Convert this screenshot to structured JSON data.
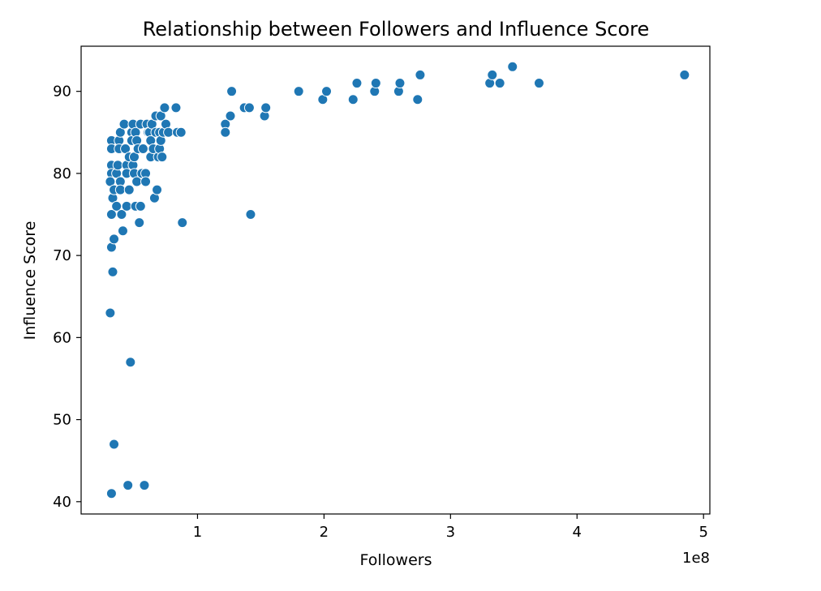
{
  "chart_data": {
    "type": "scatter",
    "title": "Relationship between Followers and Influence Score",
    "xlabel": "Followers",
    "ylabel": "Influence Score",
    "x_offset_label": "1e8",
    "xlim": [
      0.08,
      5.05
    ],
    "ylim": [
      38.5,
      95.5
    ],
    "xticks": [
      1,
      2,
      3,
      4,
      5
    ],
    "xtick_labels": [
      "1",
      "2",
      "3",
      "4",
      "5"
    ],
    "yticks": [
      40,
      50,
      60,
      70,
      80,
      90
    ],
    "ytick_labels": [
      "40",
      "50",
      "60",
      "70",
      "80",
      "90"
    ],
    "grid": false,
    "marker_color": "#1f77b4",
    "points": [
      {
        "x": 0.32,
        "y": 84
      },
      {
        "x": 0.32,
        "y": 83
      },
      {
        "x": 0.32,
        "y": 81
      },
      {
        "x": 0.32,
        "y": 80
      },
      {
        "x": 0.31,
        "y": 79
      },
      {
        "x": 0.32,
        "y": 75
      },
      {
        "x": 0.32,
        "y": 71
      },
      {
        "x": 0.33,
        "y": 68
      },
      {
        "x": 0.31,
        "y": 63
      },
      {
        "x": 0.32,
        "y": 41
      },
      {
        "x": 0.34,
        "y": 47
      },
      {
        "x": 0.34,
        "y": 72
      },
      {
        "x": 0.33,
        "y": 77
      },
      {
        "x": 0.34,
        "y": 78
      },
      {
        "x": 0.36,
        "y": 76
      },
      {
        "x": 0.36,
        "y": 80
      },
      {
        "x": 0.37,
        "y": 81
      },
      {
        "x": 0.38,
        "y": 84
      },
      {
        "x": 0.38,
        "y": 83
      },
      {
        "x": 0.39,
        "y": 85
      },
      {
        "x": 0.39,
        "y": 79
      },
      {
        "x": 0.39,
        "y": 78
      },
      {
        "x": 0.4,
        "y": 75
      },
      {
        "x": 0.41,
        "y": 73
      },
      {
        "x": 0.42,
        "y": 86
      },
      {
        "x": 0.43,
        "y": 83
      },
      {
        "x": 0.44,
        "y": 81
      },
      {
        "x": 0.44,
        "y": 80
      },
      {
        "x": 0.44,
        "y": 76
      },
      {
        "x": 0.45,
        "y": 42
      },
      {
        "x": 0.46,
        "y": 82
      },
      {
        "x": 0.46,
        "y": 78
      },
      {
        "x": 0.47,
        "y": 57
      },
      {
        "x": 0.48,
        "y": 85
      },
      {
        "x": 0.48,
        "y": 84
      },
      {
        "x": 0.49,
        "y": 86
      },
      {
        "x": 0.49,
        "y": 81
      },
      {
        "x": 0.5,
        "y": 80
      },
      {
        "x": 0.5,
        "y": 82
      },
      {
        "x": 0.51,
        "y": 85
      },
      {
        "x": 0.51,
        "y": 76
      },
      {
        "x": 0.52,
        "y": 84
      },
      {
        "x": 0.52,
        "y": 79
      },
      {
        "x": 0.53,
        "y": 83
      },
      {
        "x": 0.54,
        "y": 74
      },
      {
        "x": 0.55,
        "y": 76
      },
      {
        "x": 0.55,
        "y": 86
      },
      {
        "x": 0.56,
        "y": 80
      },
      {
        "x": 0.57,
        "y": 83
      },
      {
        "x": 0.58,
        "y": 42
      },
      {
        "x": 0.59,
        "y": 80
      },
      {
        "x": 0.59,
        "y": 79
      },
      {
        "x": 0.6,
        "y": 86
      },
      {
        "x": 0.61,
        "y": 85
      },
      {
        "x": 0.62,
        "y": 85
      },
      {
        "x": 0.63,
        "y": 84
      },
      {
        "x": 0.63,
        "y": 82
      },
      {
        "x": 0.64,
        "y": 86
      },
      {
        "x": 0.65,
        "y": 83
      },
      {
        "x": 0.66,
        "y": 77
      },
      {
        "x": 0.67,
        "y": 87
      },
      {
        "x": 0.67,
        "y": 85
      },
      {
        "x": 0.68,
        "y": 78
      },
      {
        "x": 0.69,
        "y": 82
      },
      {
        "x": 0.7,
        "y": 85
      },
      {
        "x": 0.7,
        "y": 83
      },
      {
        "x": 0.71,
        "y": 84
      },
      {
        "x": 0.71,
        "y": 87
      },
      {
        "x": 0.72,
        "y": 82
      },
      {
        "x": 0.73,
        "y": 85
      },
      {
        "x": 0.74,
        "y": 88
      },
      {
        "x": 0.75,
        "y": 86
      },
      {
        "x": 0.77,
        "y": 85
      },
      {
        "x": 0.83,
        "y": 88
      },
      {
        "x": 0.84,
        "y": 85
      },
      {
        "x": 0.87,
        "y": 85
      },
      {
        "x": 0.88,
        "y": 74
      },
      {
        "x": 1.22,
        "y": 86
      },
      {
        "x": 1.22,
        "y": 85
      },
      {
        "x": 1.26,
        "y": 87
      },
      {
        "x": 1.27,
        "y": 90
      },
      {
        "x": 1.37,
        "y": 88
      },
      {
        "x": 1.41,
        "y": 88
      },
      {
        "x": 1.42,
        "y": 75
      },
      {
        "x": 1.53,
        "y": 87
      },
      {
        "x": 1.54,
        "y": 88
      },
      {
        "x": 1.8,
        "y": 90
      },
      {
        "x": 1.99,
        "y": 89
      },
      {
        "x": 2.02,
        "y": 90
      },
      {
        "x": 2.23,
        "y": 89
      },
      {
        "x": 2.26,
        "y": 91
      },
      {
        "x": 2.4,
        "y": 90
      },
      {
        "x": 2.41,
        "y": 91
      },
      {
        "x": 2.59,
        "y": 90
      },
      {
        "x": 2.6,
        "y": 91
      },
      {
        "x": 2.74,
        "y": 89
      },
      {
        "x": 2.76,
        "y": 92
      },
      {
        "x": 3.31,
        "y": 91
      },
      {
        "x": 3.33,
        "y": 92
      },
      {
        "x": 3.39,
        "y": 91
      },
      {
        "x": 3.49,
        "y": 93
      },
      {
        "x": 3.7,
        "y": 91
      },
      {
        "x": 4.85,
        "y": 92
      }
    ]
  }
}
